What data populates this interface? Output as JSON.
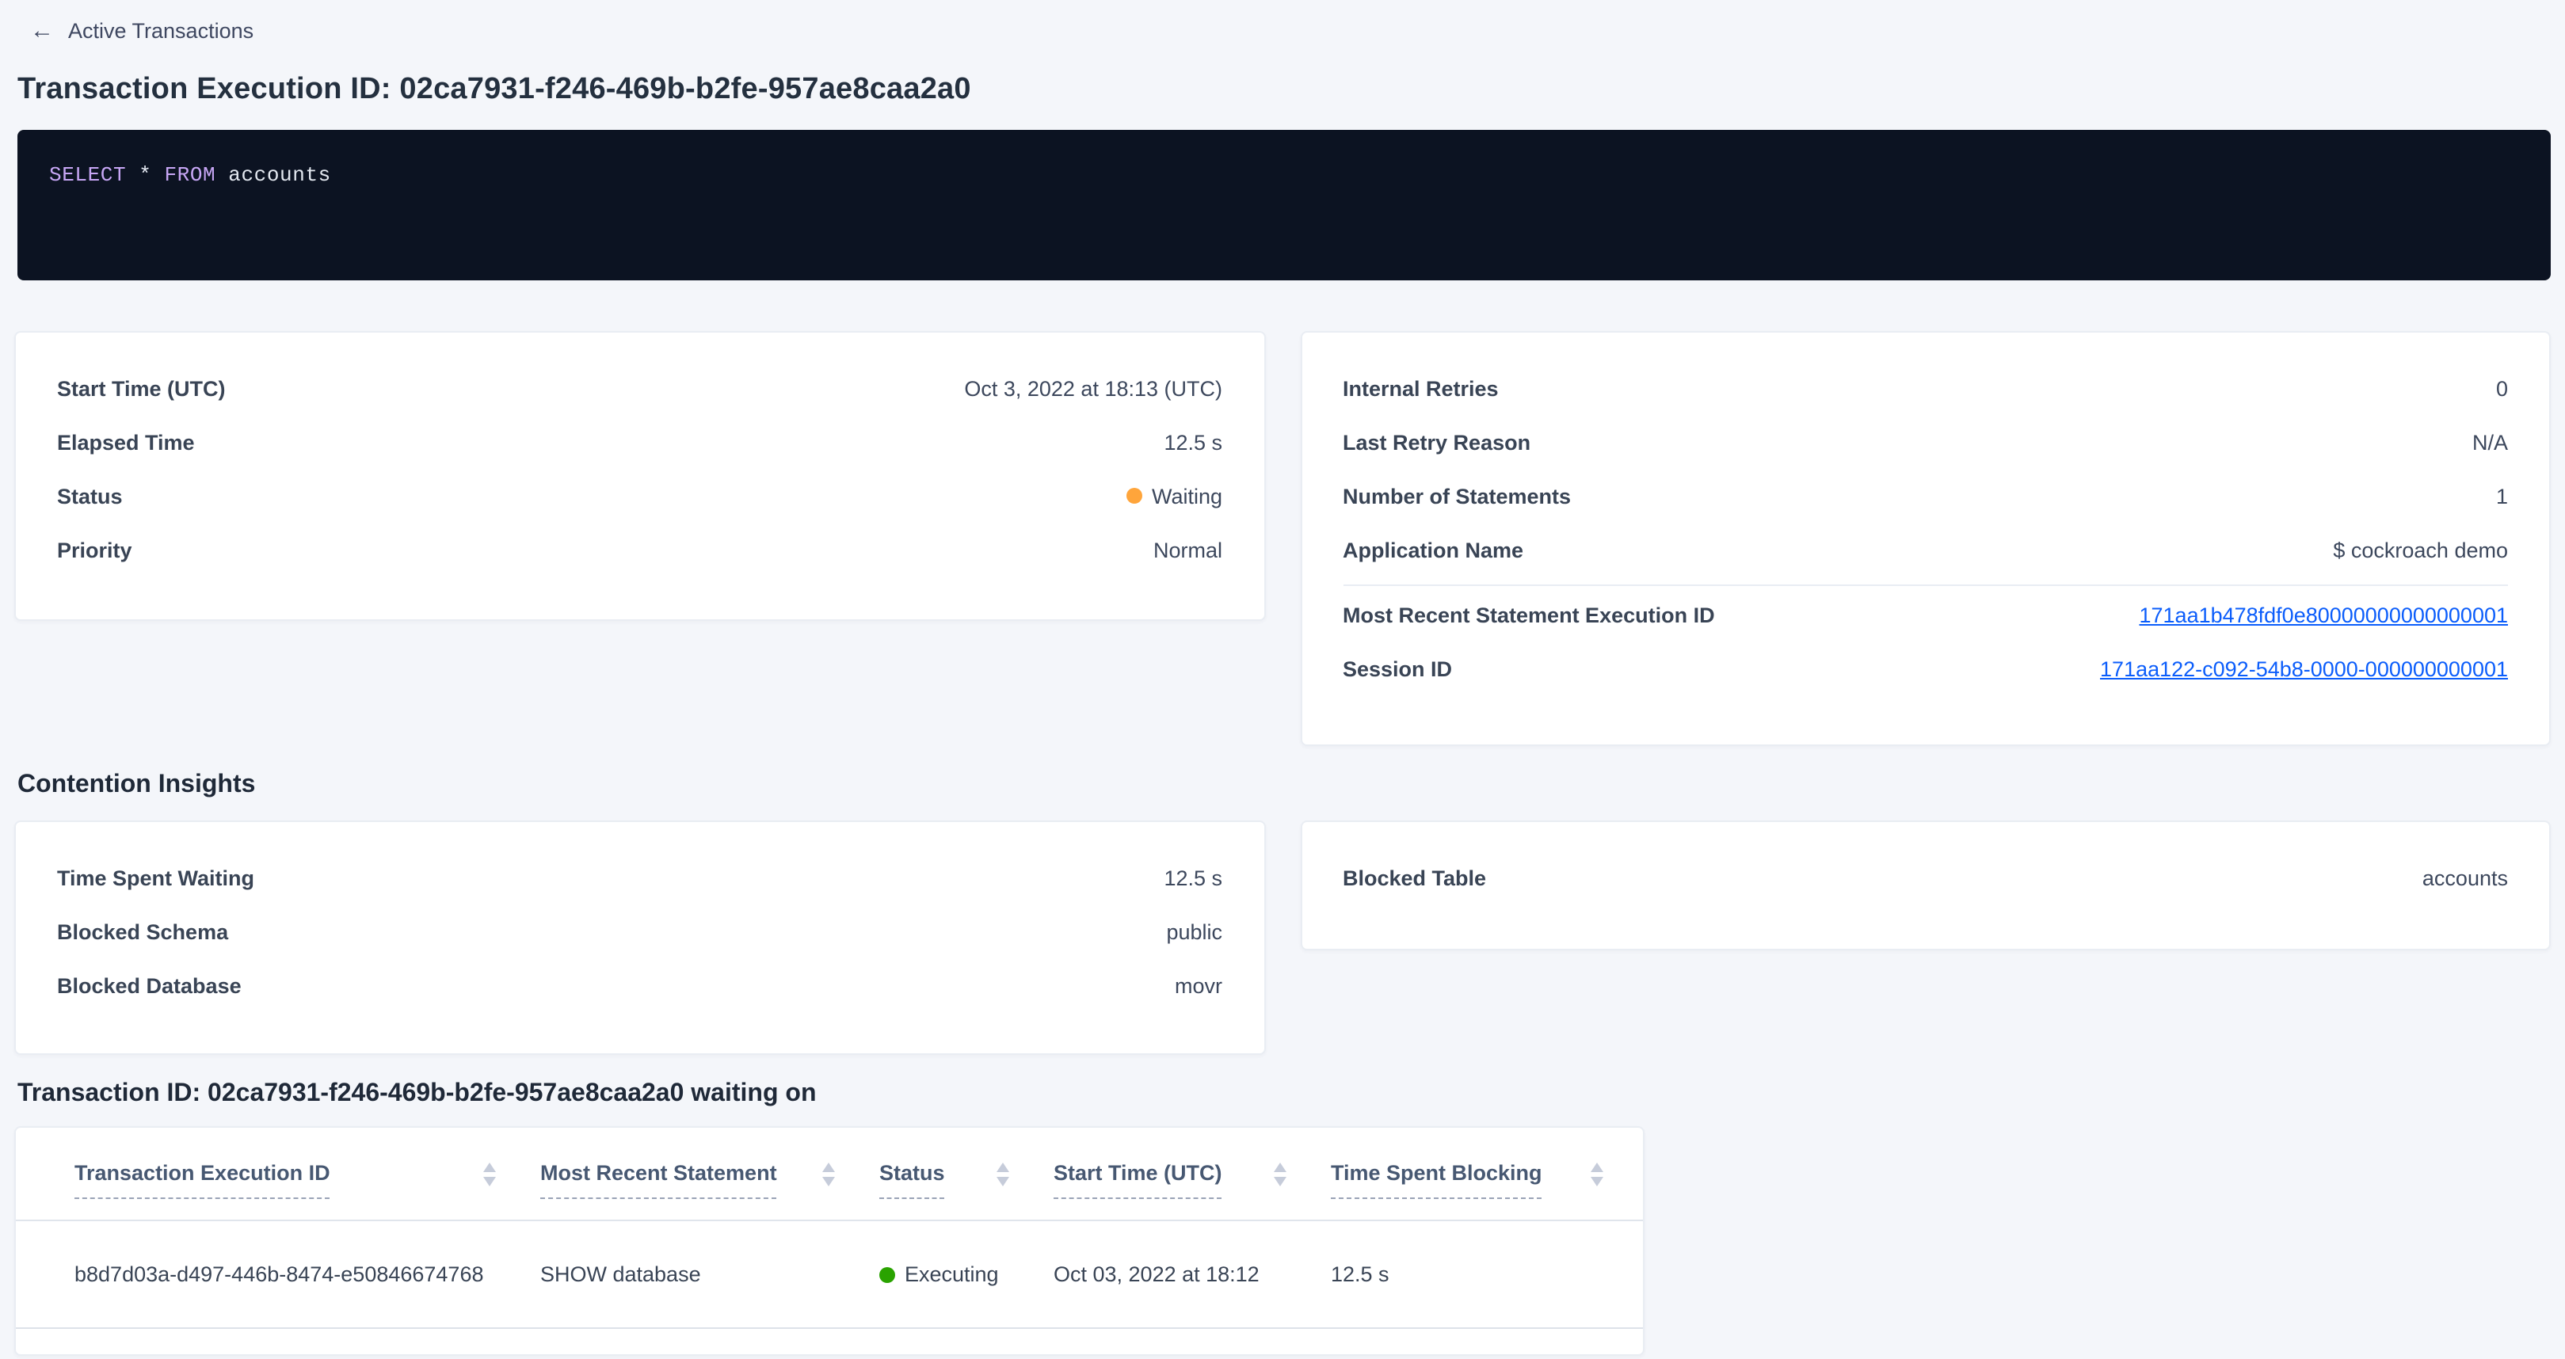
{
  "page": {
    "back_label": "Active Transactions",
    "title": "Transaction Execution ID: 02ca7931-f246-469b-b2fe-957ae8caa2a0"
  },
  "sql": {
    "statement": "SELECT * FROM accounts",
    "tokens": [
      "SELECT",
      "*",
      "FROM",
      "accounts"
    ]
  },
  "summary_left": {
    "rows": [
      {
        "label": "Start Time (UTC)",
        "value": "Oct 3, 2022 at 18:13 (UTC)"
      },
      {
        "label": "Elapsed Time",
        "value": "12.5 s"
      },
      {
        "label": "Status",
        "value": "Waiting"
      },
      {
        "label": "Priority",
        "value": "Normal"
      }
    ]
  },
  "summary_right": {
    "rows": [
      {
        "label": "Internal Retries",
        "value": "0"
      },
      {
        "label": "Last Retry Reason",
        "value": "N/A"
      },
      {
        "label": "Number of Statements",
        "value": "1"
      },
      {
        "label": "Application Name",
        "value": "$ cockroach demo"
      }
    ],
    "links": [
      {
        "label": "Most Recent Statement Execution ID",
        "value": "171aa1b478fdf0e80000000000000001"
      },
      {
        "label": "Session ID",
        "value": "171aa122-c092-54b8-0000-000000000001"
      }
    ]
  },
  "contention": {
    "heading": "Contention Insights",
    "left_rows": [
      {
        "label": "Time Spent Waiting",
        "value": "12.5 s"
      },
      {
        "label": "Blocked Schema",
        "value": "public"
      },
      {
        "label": "Blocked Database",
        "value": "movr"
      }
    ],
    "right_rows": [
      {
        "label": "Blocked Table",
        "value": "accounts"
      }
    ]
  },
  "waiting_on": {
    "heading": "Transaction ID: 02ca7931-f246-469b-b2fe-957ae8caa2a0 waiting on",
    "columns": [
      "Transaction Execution ID",
      "Most Recent Statement",
      "Status",
      "Start Time (UTC)",
      "Time Spent Blocking"
    ],
    "row": {
      "transaction_execution_id": "b8d7d03a-d497-446b-8474-e50846674768",
      "most_recent_statement": "SHOW database",
      "status": "Executing",
      "start_time": "Oct 03, 2022 at 18:12",
      "time_spent_blocking": "12.5 s"
    }
  },
  "icons": {
    "back_arrow": "←"
  },
  "colors": {
    "status_waiting": "#ffa53b",
    "status_executing": "#2aa300",
    "link_blue": "#0b5dfb",
    "code_background": "#0c1322",
    "code_keyword": "#c7a6f5",
    "page_background": "#f4f6fa"
  }
}
